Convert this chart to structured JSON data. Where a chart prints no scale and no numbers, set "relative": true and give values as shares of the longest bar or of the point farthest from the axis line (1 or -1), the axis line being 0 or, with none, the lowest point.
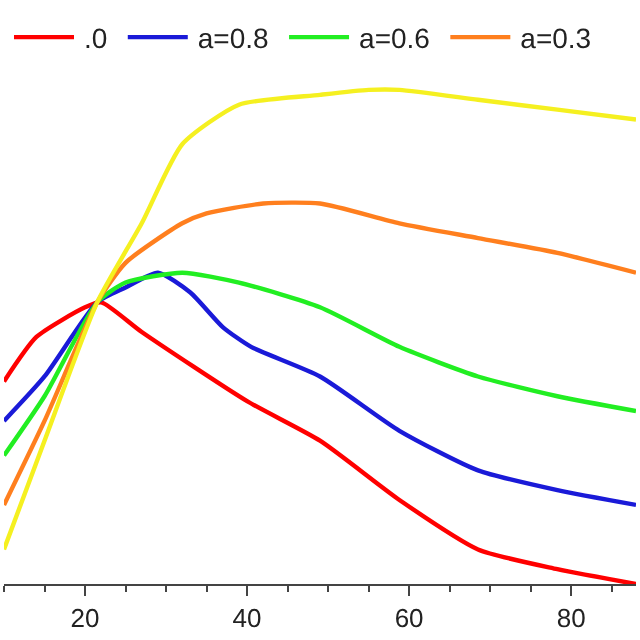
{
  "chart_data": {
    "type": "line",
    "relative": true,
    "xlim": [
      10,
      88
    ],
    "xticks": [
      20,
      40,
      60,
      80
    ],
    "tick_labels": "x",
    "grid": false,
    "legend": "top",
    "marker": "none",
    "line_style": "solid",
    "series": [
      {
        "name": ".0",
        "color": "#ff0000",
        "x": [
          10,
          14,
          20,
          22,
          27,
          40,
          49,
          58.8,
          68.5,
          78.3,
          88
        ],
        "values": [
          0.41,
          0.5,
          0.56,
          0.57,
          0.51,
          0.37,
          0.29,
          0.17,
          0.07,
          0.03,
          0
        ]
      },
      {
        "name": "a=0.8",
        "color": "#1a1ad8",
        "x": [
          10,
          15,
          21.5,
          25,
          29,
          33,
          37,
          40.5,
          49,
          58.8,
          68.5,
          78.3,
          88
        ],
        "values": [
          0.33,
          0.42,
          0.57,
          0.6,
          0.63,
          0.59,
          0.52,
          0.48,
          0.42,
          0.31,
          0.23,
          0.19,
          0.16
        ]
      },
      {
        "name": "a=0.6",
        "color": "#22ee22",
        "x": [
          10,
          15,
          21.5,
          25,
          32,
          39,
          49,
          58.8,
          68.5,
          78.3,
          88
        ],
        "values": [
          0.26,
          0.38,
          0.57,
          0.61,
          0.63,
          0.61,
          0.56,
          0.48,
          0.42,
          0.38,
          0.35
        ]
      },
      {
        "name": "a=0.3",
        "color": "#ff7f1e",
        "x": [
          10,
          15,
          21.5,
          25,
          32,
          35,
          42,
          49,
          58.8,
          68.5,
          78.3,
          88
        ],
        "values": [
          0.16,
          0.33,
          0.57,
          0.65,
          0.73,
          0.75,
          0.77,
          0.77,
          0.73,
          0.7,
          0.67,
          0.63
        ]
      },
      {
        "color": "#f5f020",
        "x": [
          10,
          15,
          21.5,
          27,
          32,
          39,
          49,
          55,
          58.8,
          68.5,
          78.3,
          88
        ],
        "values": [
          0.07,
          0.29,
          0.57,
          0.73,
          0.89,
          0.97,
          0.99,
          1,
          1,
          0.98,
          0.96,
          0.94
        ]
      }
    ]
  }
}
